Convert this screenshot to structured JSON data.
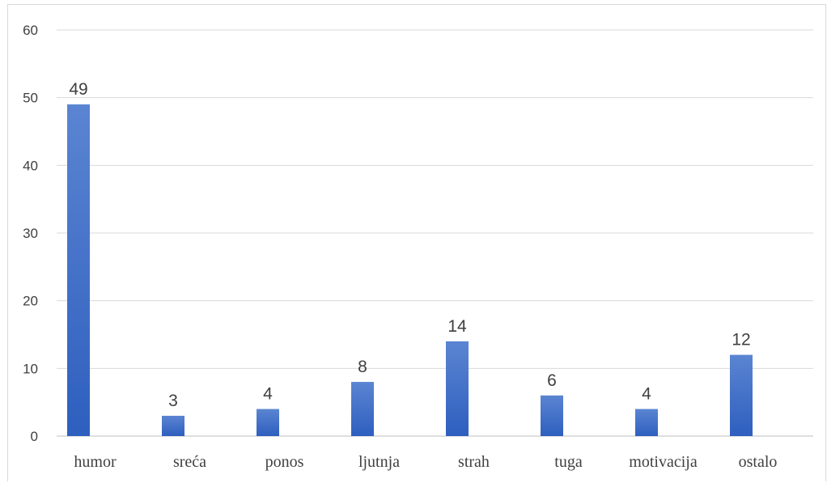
{
  "chart_data": {
    "type": "bar",
    "categories": [
      "humor",
      "sreća",
      "ponos",
      "ljutnja",
      "strah",
      "tuga",
      "motivacija",
      "ostalo"
    ],
    "values": [
      49,
      3,
      4,
      8,
      14,
      6,
      4,
      12
    ],
    "ylim": [
      0,
      60
    ],
    "yticks": [
      0,
      10,
      20,
      30,
      40,
      50,
      60
    ],
    "grid": true,
    "data_labels": true,
    "colors": {
      "bar_top": "#5b85d2",
      "bar_bottom": "#2e5fbf",
      "grid": "#d9d9d9",
      "axis": "#bfbfbf",
      "text": "#404040"
    }
  }
}
